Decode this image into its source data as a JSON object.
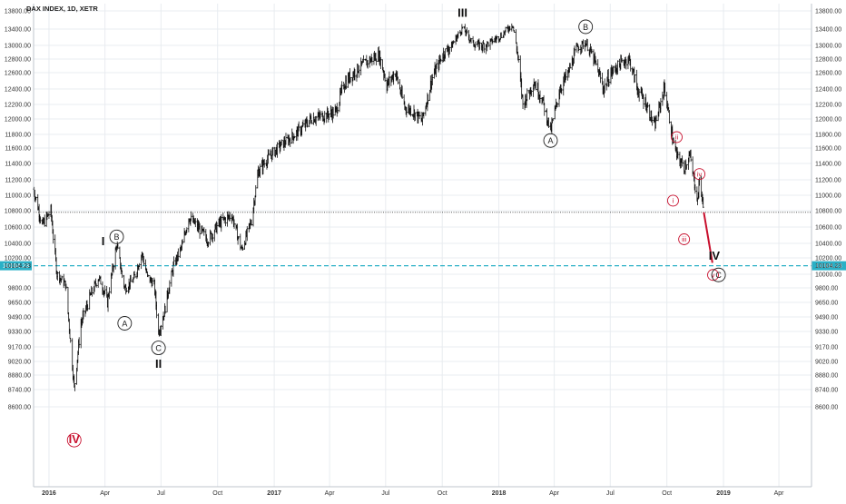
{
  "symbol": "DAX INDEX, 1D, XETR",
  "price_tag": "10104.23",
  "colors": {
    "bars": "#111111",
    "grid": "#e8ecf0",
    "support_line": "#2ab0c6",
    "wave_red": "#c8102e",
    "circle": "#222222"
  },
  "x_ticks": [
    "2016",
    "Apr",
    "Jul",
    "Oct",
    "2017",
    "Apr",
    "Jul",
    "Oct",
    "2018",
    "Apr",
    "Jul",
    "Oct",
    "2019",
    "Apr"
  ],
  "y_ticks_left": [
    "13800.00",
    "13400.00",
    "13000.00",
    "12800.00",
    "12600.00",
    "12400.00",
    "12200.00",
    "12000.00",
    "11800.00",
    "11600.00",
    "11400.00",
    "11200.00",
    "11000.00",
    "10800.00",
    "10600.00",
    "10400.00",
    "10200.00",
    "10104.23",
    "9800.00",
    "9650.00",
    "9490.00",
    "9330.00",
    "9170.00",
    "9020.00",
    "8880.00",
    "8740.00",
    "8600.00"
  ],
  "y_ticks_right": [
    "13800.00",
    "13400.00",
    "13000.00",
    "12800.00",
    "12600.00",
    "12400.00",
    "12200.00",
    "12000.00",
    "11800.00",
    "11600.00",
    "11400.00",
    "11200.00",
    "11000.00",
    "10800.00",
    "10600.00",
    "10400.00",
    "10200.00",
    "10104.23",
    "10000.00",
    "9800.00",
    "9650.00",
    "9490.00",
    "9330.00",
    "9170.00",
    "9020.00",
    "8880.00",
    "8740.00",
    "8600.00"
  ],
  "wave_labels": [
    {
      "text": "IV",
      "kind": "roman-red-circle",
      "date": "2016-02-11",
      "price": 8550
    },
    {
      "text": "I",
      "kind": "roman",
      "date": "2016-03-29",
      "price": 10420
    },
    {
      "text": "B",
      "kind": "circle",
      "date": "2016-04-20",
      "price": 10480
    },
    {
      "text": "A",
      "kind": "circle",
      "date": "2016-05-03",
      "price": 9420
    },
    {
      "text": "C",
      "kind": "circle",
      "date": "2016-06-27",
      "price": 9160
    },
    {
      "text": "II",
      "kind": "roman",
      "date": "2016-06-27",
      "price": 8990
    },
    {
      "text": "III",
      "kind": "roman",
      "date": "2017-11-03",
      "price": 13750
    },
    {
      "text": "A",
      "kind": "circle",
      "date": "2018-03-26",
      "price": 11710
    },
    {
      "text": "B",
      "kind": "circle",
      "date": "2018-05-22",
      "price": 13450
    },
    {
      "text": "ii",
      "kind": "red-circle",
      "date": "2018-10-17",
      "price": 11760
    },
    {
      "text": "iv",
      "kind": "red-circle",
      "date": "2018-11-23",
      "price": 11270
    },
    {
      "text": "i",
      "kind": "red-circle",
      "date": "2018-10-11",
      "price": 10930
    },
    {
      "text": "iii",
      "kind": "red-circle",
      "date": "2018-10-29",
      "price": 10450
    },
    {
      "text": "IV",
      "kind": "roman",
      "date": "2018-12-17",
      "price": 10225
    },
    {
      "text": "v",
      "kind": "red-circle",
      "date": "2018-12-15",
      "price": 9990
    },
    {
      "text": "C",
      "kind": "circle",
      "date": "2018-12-24",
      "price": 9990
    }
  ],
  "chart_data": {
    "type": "line",
    "title": "DAX INDEX, 1D, XETR",
    "x_range": [
      "2015-12-07",
      "2019-05-24"
    ],
    "ylim": [
      8480,
      13960
    ],
    "y_scale": "nonlinear",
    "y_axis_ticks": [
      13800,
      13400,
      13000,
      12800,
      12600,
      12400,
      12200,
      12000,
      11800,
      11600,
      11400,
      11200,
      11000,
      10800,
      10600,
      10400,
      10200,
      10000,
      9800,
      9650,
      9490,
      9330,
      9170,
      9020,
      8880,
      8740,
      8600
    ],
    "horizontal_lines": [
      {
        "value": 10104.23,
        "style": "dashed",
        "color": "#2ab0c6"
      },
      {
        "value": 10780,
        "style": "dotted",
        "color": "#444444"
      }
    ],
    "projection_line": {
      "from": {
        "x": "2018-11-30",
        "y": 10780
      },
      "to": {
        "x": "2018-12-14",
        "y": 10140
      }
    },
    "grid": true,
    "series": [
      {
        "x": [
          "2015-12-07",
          "2015-12-21",
          "2016-01-04",
          "2016-01-14",
          "2016-01-28",
          "2016-02-11",
          "2016-02-22",
          "2016-03-08",
          "2016-03-22",
          "2016-04-05",
          "2016-04-20",
          "2016-05-03",
          "2016-05-17",
          "2016-05-31",
          "2016-06-09",
          "2016-06-20",
          "2016-06-27",
          "2016-07-07",
          "2016-07-21",
          "2016-08-04",
          "2016-08-15",
          "2016-09-01",
          "2016-09-15",
          "2016-10-03",
          "2016-10-24",
          "2016-11-09",
          "2016-11-25",
          "2016-12-06",
          "2016-12-20",
          "2017-01-10",
          "2017-01-27",
          "2017-02-15",
          "2017-03-02",
          "2017-03-20",
          "2017-04-11",
          "2017-04-24",
          "2017-05-16",
          "2017-06-01",
          "2017-06-20",
          "2017-07-03",
          "2017-07-17",
          "2017-08-01",
          "2017-08-15",
          "2017-08-29",
          "2017-09-14",
          "2017-10-02",
          "2017-10-16",
          "2017-11-03",
          "2017-11-20",
          "2017-12-04",
          "2017-12-15",
          "2018-01-05",
          "2018-01-23",
          "2018-02-09",
          "2018-02-27",
          "2018-03-12",
          "2018-03-26",
          "2018-04-10",
          "2018-04-24",
          "2018-05-08",
          "2018-05-22",
          "2018-06-05",
          "2018-06-20",
          "2018-07-02",
          "2018-07-16",
          "2018-07-31",
          "2018-08-14",
          "2018-08-28",
          "2018-09-11",
          "2018-09-27",
          "2018-10-11",
          "2018-10-17",
          "2018-10-29",
          "2018-11-07",
          "2018-11-20",
          "2018-11-23",
          "2018-11-30"
        ],
        "y": [
          11080,
          10620,
          10800,
          10000,
          9850,
          8750,
          9420,
          9710,
          9950,
          9650,
          10380,
          9800,
          9920,
          10260,
          9960,
          9850,
          9320,
          9560,
          10090,
          10360,
          10720,
          10580,
          10440,
          10640,
          10750,
          10310,
          10680,
          11300,
          11450,
          11630,
          11740,
          11880,
          12010,
          12040,
          12100,
          12460,
          12650,
          12760,
          12860,
          12450,
          12610,
          12160,
          12100,
          11980,
          12520,
          12870,
          13000,
          13430,
          13050,
          13010,
          13050,
          13240,
          13520,
          12200,
          12490,
          12280,
          11840,
          12400,
          12600,
          12970,
          13070,
          12780,
          12400,
          12600,
          12720,
          12810,
          12400,
          12210,
          11900,
          12420,
          11700,
          11500,
          11350,
          11510,
          10930,
          11220,
          10780
        ]
      }
    ]
  }
}
